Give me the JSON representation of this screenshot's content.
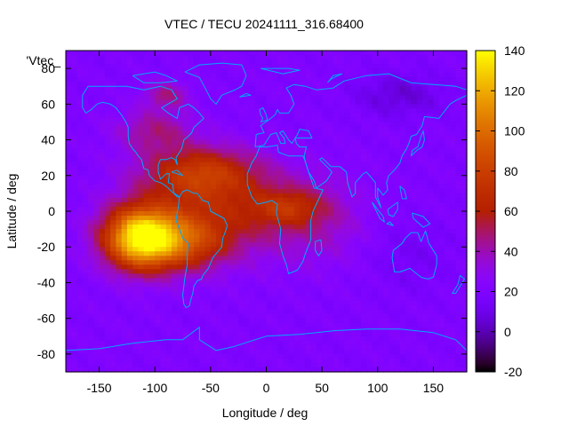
{
  "chart_data": {
    "type": "heatmap",
    "title": "VTEC / TECU 20241111_316.68400",
    "xlabel": "Longitude / deg",
    "ylabel": "Latitude / deg",
    "legend_label": "'Vtec_",
    "xlim": [
      -180,
      180
    ],
    "ylim": [
      -90,
      90
    ],
    "zlim": [
      -20,
      140
    ],
    "x_ticks": [
      -150,
      -100,
      -50,
      0,
      50,
      100,
      150
    ],
    "y_ticks": [
      -80,
      -60,
      -40,
      -20,
      0,
      20,
      40,
      60,
      80
    ],
    "colorbar_ticks": [
      -20,
      0,
      20,
      40,
      60,
      80,
      100,
      120,
      140
    ],
    "colormap": "gnuplot-pm3d-rgbformulae-7-5-15",
    "grid": false,
    "background_tec": 20,
    "features": [
      {
        "name": "south-america-crest",
        "lon": -112,
        "lat": -15,
        "peak_tec": 120,
        "sigma_lon": 33,
        "sigma_lat": 17
      },
      {
        "name": "southern-crest",
        "lon": -70,
        "lat": -18,
        "peak_tec": 40,
        "sigma_lon": 35,
        "sigma_lat": 15
      },
      {
        "name": "northern-crest",
        "lon": -60,
        "lat": 22,
        "peak_tec": 45,
        "sigma_lon": 50,
        "sigma_lat": 14
      },
      {
        "name": "equatorial-band",
        "lon": -40,
        "lat": 0,
        "peak_tec": 38,
        "sigma_lon": 70,
        "sigma_lat": 25
      },
      {
        "name": "atlantic-extension",
        "lon": 20,
        "lat": 2,
        "peak_tec": 30,
        "sigma_lon": 30,
        "sigma_lat": 10
      },
      {
        "name": "north-america",
        "lon": -100,
        "lat": 45,
        "peak_tec": 25,
        "sigma_lon": 35,
        "sigma_lat": 12
      },
      {
        "name": "arctic-canada",
        "lon": -90,
        "lat": 65,
        "peak_tec": 25,
        "sigma_lon": 20,
        "sigma_lat": 8
      },
      {
        "name": "indian-ocean",
        "lon": 50,
        "lat": -5,
        "peak_tec": 15,
        "sigma_lon": 40,
        "sigma_lat": 25
      },
      {
        "name": "east-asia-low",
        "lon": 120,
        "lat": 65,
        "peak_tec": -14,
        "sigma_lon": 40,
        "sigma_lat": 12
      },
      {
        "name": "pacific-low",
        "lon": 130,
        "lat": -25,
        "peak_tec": -6,
        "sigma_lon": 40,
        "sigma_lat": 20
      }
    ]
  }
}
